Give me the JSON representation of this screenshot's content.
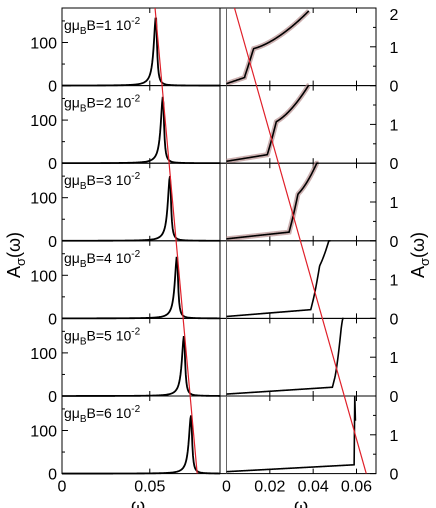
{
  "chart_data": {
    "type": "line",
    "left": {
      "xlabel": "ω",
      "ylabel": "A",
      "ylabel_sub": "σ",
      "ylabel_tail": "(ω)",
      "xlim": [
        0,
        0.09
      ],
      "ylim": [
        0,
        180
      ],
      "xticks": [
        {
          "v": 0,
          "label": "0"
        },
        {
          "v": 0.05,
          "label": "0.05"
        }
      ],
      "yticks": [
        {
          "v": 0,
          "label": "0"
        },
        {
          "v": 100,
          "label": "100"
        }
      ]
    },
    "right": {
      "xlabel": "ω",
      "ylabel": "A",
      "ylabel_sub": "σ",
      "ylabel_tail": "(ω)",
      "xlim": [
        -0.003,
        0.069
      ],
      "ylim": [
        0,
        2
      ],
      "xticks": [
        {
          "v": 0,
          "label": "0"
        },
        {
          "v": 0.02,
          "label": "0.02"
        },
        {
          "v": 0.04,
          "label": "0.04"
        },
        {
          "v": 0.06,
          "label": "0.06"
        }
      ],
      "yticks": [
        {
          "v": 0,
          "label": "0"
        },
        {
          "v": 1,
          "label": "1"
        },
        {
          "v": 2,
          "label": "2"
        }
      ]
    },
    "panels": [
      {
        "label": "gμ",
        "label_sub": "B",
        "label_mid": "B=1 10",
        "label_sup": "-2",
        "peak_x": 0.0535,
        "peak_h": 160,
        "gamma_l": 0.0022,
        "gamma_r": 0.0011,
        "rx0": 0.0095,
        "rend": 0.038,
        "rshoulder": 0.75
      },
      {
        "label": "gμ",
        "label_sub": "B",
        "label_mid": "B=2 10",
        "label_sup": "-2",
        "peak_x": 0.0575,
        "peak_h": 155,
        "gamma_l": 0.0022,
        "gamma_r": 0.0011,
        "rx0": 0.02,
        "rend": 0.038,
        "rshoulder": 0.85
      },
      {
        "label": "gμ",
        "label_sub": "B",
        "label_mid": "B=3 10",
        "label_sup": "-2",
        "peak_x": 0.0615,
        "peak_h": 150,
        "gamma_l": 0.0022,
        "gamma_r": 0.0011,
        "rx0": 0.03,
        "rend": 0.0425,
        "rshoulder": 0.95
      },
      {
        "label": "gμ",
        "label_sub": "B",
        "label_mid": "B=4 10",
        "label_sup": "-2",
        "peak_x": 0.0655,
        "peak_h": 145,
        "gamma_l": 0.0022,
        "gamma_r": 0.0011,
        "rx0": 0.04,
        "rend": 0.048,
        "rshoulder": 1.0
      },
      {
        "label": "gμ",
        "label_sub": "B",
        "label_mid": "B=5 10",
        "label_sup": "-2",
        "peak_x": 0.0695,
        "peak_h": 140,
        "gamma_l": 0.0022,
        "gamma_r": 0.0011,
        "rx0": 0.05,
        "rend": 0.054,
        "rshoulder": 1.0
      },
      {
        "label": "gμ",
        "label_sub": "B",
        "label_mid": "B=6 10",
        "label_sup": "-2",
        "peak_x": 0.0735,
        "peak_h": 135,
        "gamma_l": 0.0022,
        "gamma_r": 0.0011,
        "rx0": 0.06,
        "rend": 0.0595,
        "rshoulder": 1.0
      }
    ],
    "line_left": {
      "x_start": 0.05,
      "x_end": 0.078
    },
    "line_right": {
      "p1": [
        0.0,
        2.0
      ],
      "p2": [
        0.0645,
        0.0
      ]
    },
    "colors": {
      "curve": "#000000",
      "line": "#e0202a",
      "band": "#b89090",
      "axis": "#000000"
    }
  }
}
